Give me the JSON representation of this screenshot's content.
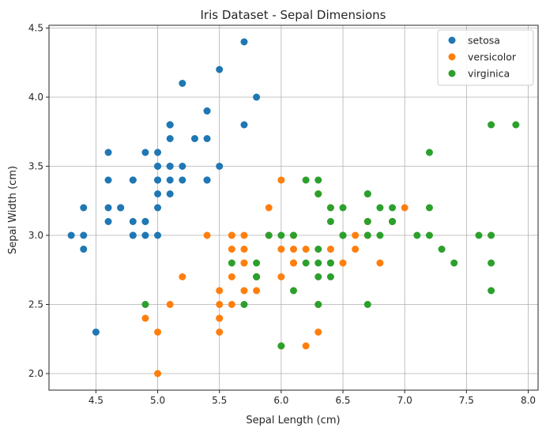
{
  "chart_data": {
    "type": "scatter",
    "title": "Iris Dataset - Sepal Dimensions",
    "xlabel": "Sepal Length (cm)",
    "ylabel": "Sepal Width (cm)",
    "xlim": [
      4.12,
      8.08
    ],
    "ylim": [
      1.88,
      4.52
    ],
    "xticks": [
      4.5,
      5.0,
      5.5,
      6.0,
      6.5,
      7.0,
      7.5,
      8.0
    ],
    "xtick_labels": [
      "4.5",
      "5.0",
      "5.5",
      "6.0",
      "6.5",
      "7.0",
      "7.5",
      "8.0"
    ],
    "yticks": [
      2.0,
      2.5,
      3.0,
      3.5,
      4.0,
      4.5
    ],
    "ytick_labels": [
      "2.0",
      "2.5",
      "3.0",
      "3.5",
      "4.0",
      "4.5"
    ],
    "grid": true,
    "legend_position": "top-right",
    "series": [
      {
        "name": "setosa",
        "color": "#1f77b4",
        "points": [
          [
            5.1,
            3.5
          ],
          [
            4.9,
            3.0
          ],
          [
            4.7,
            3.2
          ],
          [
            4.6,
            3.1
          ],
          [
            5.0,
            3.6
          ],
          [
            5.4,
            3.9
          ],
          [
            4.6,
            3.4
          ],
          [
            5.0,
            3.4
          ],
          [
            4.4,
            2.9
          ],
          [
            4.9,
            3.1
          ],
          [
            5.4,
            3.7
          ],
          [
            4.8,
            3.4
          ],
          [
            4.8,
            3.0
          ],
          [
            4.3,
            3.0
          ],
          [
            5.8,
            4.0
          ],
          [
            5.7,
            4.4
          ],
          [
            5.4,
            3.9
          ],
          [
            5.1,
            3.5
          ],
          [
            5.7,
            3.8
          ],
          [
            5.1,
            3.8
          ],
          [
            5.4,
            3.4
          ],
          [
            5.1,
            3.7
          ],
          [
            4.6,
            3.6
          ],
          [
            5.1,
            3.3
          ],
          [
            4.8,
            3.4
          ],
          [
            5.0,
            3.0
          ],
          [
            5.0,
            3.4
          ],
          [
            5.2,
            3.5
          ],
          [
            5.2,
            3.4
          ],
          [
            4.7,
            3.2
          ],
          [
            4.8,
            3.1
          ],
          [
            5.4,
            3.4
          ],
          [
            5.2,
            4.1
          ],
          [
            5.5,
            4.2
          ],
          [
            4.9,
            3.1
          ],
          [
            5.0,
            3.2
          ],
          [
            5.5,
            3.5
          ],
          [
            4.9,
            3.6
          ],
          [
            4.4,
            3.0
          ],
          [
            5.1,
            3.4
          ],
          [
            5.0,
            3.5
          ],
          [
            4.5,
            2.3
          ],
          [
            4.4,
            3.2
          ],
          [
            5.0,
            3.5
          ],
          [
            5.1,
            3.8
          ],
          [
            4.8,
            3.0
          ],
          [
            5.1,
            3.8
          ],
          [
            4.6,
            3.2
          ],
          [
            5.3,
            3.7
          ],
          [
            5.0,
            3.3
          ]
        ]
      },
      {
        "name": "versicolor",
        "color": "#ff7f0e",
        "points": [
          [
            7.0,
            3.2
          ],
          [
            6.4,
            3.2
          ],
          [
            6.9,
            3.1
          ],
          [
            5.5,
            2.3
          ],
          [
            6.5,
            2.8
          ],
          [
            5.7,
            2.8
          ],
          [
            6.3,
            3.3
          ],
          [
            4.9,
            2.4
          ],
          [
            6.6,
            2.9
          ],
          [
            5.2,
            2.7
          ],
          [
            5.0,
            2.0
          ],
          [
            5.9,
            3.0
          ],
          [
            6.0,
            2.2
          ],
          [
            6.1,
            2.9
          ],
          [
            5.6,
            2.9
          ],
          [
            6.7,
            3.1
          ],
          [
            5.6,
            3.0
          ],
          [
            5.8,
            2.7
          ],
          [
            6.2,
            2.2
          ],
          [
            5.6,
            2.5
          ],
          [
            5.9,
            3.2
          ],
          [
            6.1,
            2.8
          ],
          [
            6.3,
            2.5
          ],
          [
            6.1,
            2.8
          ],
          [
            6.4,
            2.9
          ],
          [
            6.6,
            3.0
          ],
          [
            6.8,
            2.8
          ],
          [
            6.7,
            3.0
          ],
          [
            6.0,
            2.9
          ],
          [
            5.7,
            2.6
          ],
          [
            5.5,
            2.4
          ],
          [
            5.5,
            2.4
          ],
          [
            5.8,
            2.7
          ],
          [
            6.0,
            2.7
          ],
          [
            5.4,
            3.0
          ],
          [
            6.0,
            3.4
          ],
          [
            6.7,
            3.1
          ],
          [
            6.3,
            2.3
          ],
          [
            5.6,
            3.0
          ],
          [
            5.5,
            2.5
          ],
          [
            5.5,
            2.6
          ],
          [
            6.1,
            3.0
          ],
          [
            5.8,
            2.6
          ],
          [
            5.0,
            2.3
          ],
          [
            5.6,
            2.7
          ],
          [
            5.7,
            3.0
          ],
          [
            5.7,
            2.9
          ],
          [
            6.2,
            2.9
          ],
          [
            5.1,
            2.5
          ],
          [
            5.7,
            2.8
          ]
        ]
      },
      {
        "name": "virginica",
        "color": "#2ca02c",
        "points": [
          [
            6.3,
            3.3
          ],
          [
            5.8,
            2.7
          ],
          [
            7.1,
            3.0
          ],
          [
            6.3,
            2.9
          ],
          [
            6.5,
            3.0
          ],
          [
            7.6,
            3.0
          ],
          [
            4.9,
            2.5
          ],
          [
            7.3,
            2.9
          ],
          [
            6.7,
            2.5
          ],
          [
            7.2,
            3.6
          ],
          [
            6.5,
            3.2
          ],
          [
            6.4,
            2.7
          ],
          [
            6.8,
            3.0
          ],
          [
            5.7,
            2.5
          ],
          [
            5.8,
            2.8
          ],
          [
            6.4,
            3.2
          ],
          [
            6.5,
            3.0
          ],
          [
            7.7,
            3.8
          ],
          [
            7.7,
            2.6
          ],
          [
            6.0,
            2.2
          ],
          [
            6.9,
            3.2
          ],
          [
            5.6,
            2.8
          ],
          [
            7.7,
            2.8
          ],
          [
            6.3,
            2.7
          ],
          [
            6.7,
            3.3
          ],
          [
            7.2,
            3.2
          ],
          [
            6.2,
            2.8
          ],
          [
            6.1,
            3.0
          ],
          [
            6.4,
            2.8
          ],
          [
            7.2,
            3.0
          ],
          [
            7.4,
            2.8
          ],
          [
            7.9,
            3.8
          ],
          [
            6.4,
            2.8
          ],
          [
            6.3,
            2.8
          ],
          [
            6.1,
            2.6
          ],
          [
            7.7,
            3.0
          ],
          [
            6.3,
            3.4
          ],
          [
            6.4,
            3.1
          ],
          [
            6.0,
            3.0
          ],
          [
            6.9,
            3.1
          ],
          [
            6.7,
            3.1
          ],
          [
            6.9,
            3.1
          ],
          [
            5.8,
            2.7
          ],
          [
            6.8,
            3.2
          ],
          [
            6.7,
            3.3
          ],
          [
            6.7,
            3.0
          ],
          [
            6.3,
            2.5
          ],
          [
            6.5,
            3.0
          ],
          [
            6.2,
            3.4
          ],
          [
            5.9,
            3.0
          ]
        ]
      }
    ]
  }
}
